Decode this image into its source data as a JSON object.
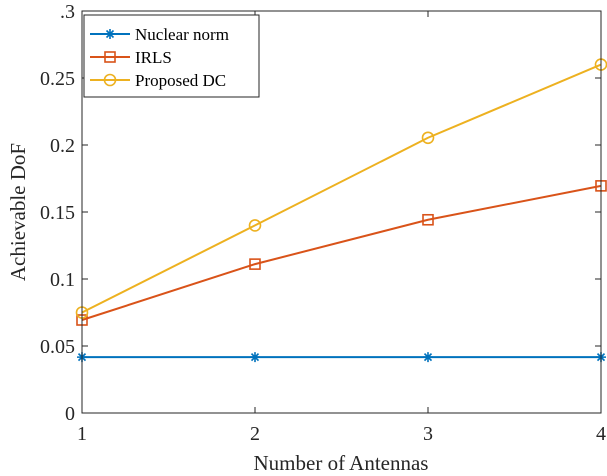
{
  "chart_data": {
    "type": "line",
    "x": [
      1,
      2,
      3,
      4
    ],
    "xlabel": "Number of Antennas",
    "ylabel": "Achievable DoF",
    "xlim": [
      1,
      4
    ],
    "ylim": [
      0,
      0.3
    ],
    "x_ticks": [
      "1",
      "2",
      "3",
      "4"
    ],
    "y_ticks": [
      "0",
      "0.05",
      "0.1",
      "0.15",
      "0.2",
      "0.25",
      ".3"
    ],
    "y_tick_values": [
      0,
      0.05,
      0.1,
      0.15,
      0.2,
      0.25,
      0.3
    ],
    "grid": false,
    "legend_position": "top-left",
    "series": [
      {
        "name": "Nuclear norm",
        "values": [
          0.0417,
          0.0417,
          0.0417,
          0.0417
        ],
        "color": "#0072BD",
        "marker": "asterisk"
      },
      {
        "name": "IRLS",
        "values": [
          0.0694,
          0.1111,
          0.1442,
          0.1695
        ],
        "color": "#D95319",
        "marker": "square"
      },
      {
        "name": "Proposed DC",
        "values": [
          0.075,
          0.14,
          0.2054,
          0.26
        ],
        "color": "#EDB120",
        "marker": "circle"
      }
    ]
  }
}
